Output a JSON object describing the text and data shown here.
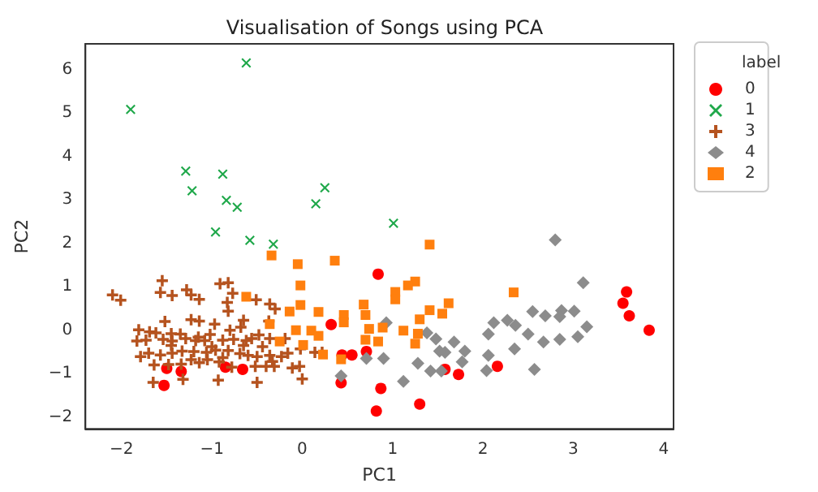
{
  "chart_data": {
    "type": "scatter",
    "title": "Visualisation of Songs using PCA",
    "xlabel": "PC1",
    "ylabel": "PC2",
    "legend_title": "label",
    "legend": "top right",
    "grid": false,
    "xlim": [
      -2.4,
      4.11
    ],
    "ylim": [
      -2.27,
      6.59
    ],
    "xticks": [
      -2,
      -1,
      0,
      1,
      2,
      3,
      4
    ],
    "yticks": [
      -2,
      -1,
      0,
      1,
      2,
      3,
      4,
      5,
      6
    ],
    "series": [
      {
        "name": "0",
        "color": "#ff0000",
        "marker": "circle",
        "x": [
          0.32,
          0.55,
          0.44,
          -0.66,
          -1.34,
          -1.53,
          -1.5,
          -0.85,
          0.43,
          0.84,
          0.71,
          0.87,
          0.82,
          1.3,
          1.58,
          1.73,
          2.16,
          3.59,
          3.55,
          3.62,
          3.84
        ],
        "values": [
          0.13,
          -0.57,
          -0.57,
          -0.9,
          -0.95,
          -1.27,
          -0.88,
          -0.85,
          -1.21,
          1.29,
          -0.49,
          -1.34,
          -1.86,
          -1.7,
          -0.9,
          -1.02,
          -0.83,
          0.88,
          0.62,
          0.33,
          0.0
        ]
      },
      {
        "name": "1",
        "color": "#1fa84a",
        "marker": "x",
        "x": [
          -0.62,
          -1.9,
          -1.29,
          -0.88,
          -1.22,
          -0.84,
          -0.72,
          0.25,
          0.15,
          -0.96,
          -0.58,
          -0.32,
          1.01
        ],
        "values": [
          6.15,
          5.08,
          3.66,
          3.59,
          3.21,
          2.99,
          2.83,
          3.28,
          2.91,
          2.26,
          2.07,
          1.98,
          2.46
        ]
      },
      {
        "name": "3",
        "color": "#b5531f",
        "marker": "cross",
        "x": [
          -2.1,
          -2.01,
          -1.55,
          -1.57,
          -1.44,
          -1.28,
          -1.23,
          -1.14,
          -0.91,
          -0.82,
          -0.77,
          -0.83,
          -0.82,
          -0.51,
          -0.36,
          -0.3,
          -1.23,
          -1.52,
          -1.14,
          -0.97,
          -1.81,
          -1.69,
          -1.62,
          -1.45,
          -1.35,
          -1.15,
          -1.02,
          -0.8,
          -0.65,
          -0.68,
          -0.56,
          -0.48,
          -0.37,
          -1.83,
          -1.73,
          -1.54,
          -1.44,
          -1.29,
          -1.18,
          -1.08,
          -0.88,
          -0.76,
          -0.62,
          -0.36,
          -0.19,
          -1.79,
          -1.7,
          -1.57,
          -1.44,
          -1.33,
          -1.2,
          -1.06,
          -0.96,
          -0.82,
          -0.69,
          -0.6,
          -0.44,
          -0.36,
          -0.16,
          -0.02,
          0.14,
          -1.64,
          -1.48,
          -1.34,
          -1.14,
          -0.92,
          -0.78,
          -0.52,
          -0.4,
          -0.31,
          -0.03,
          -1.65,
          -1.32,
          -0.93,
          -0.5,
          0.0,
          0.22,
          -1.45,
          -1.0,
          -0.65,
          -0.11,
          -1.23,
          -1.05,
          -0.88,
          -0.5,
          -0.33,
          -0.23
        ],
        "values": [
          0.81,
          0.69,
          1.14,
          0.87,
          0.8,
          0.93,
          0.81,
          0.71,
          1.07,
          1.09,
          0.85,
          0.64,
          0.44,
          0.7,
          0.6,
          0.49,
          0.24,
          0.2,
          0.21,
          0.14,
          0.01,
          -0.04,
          -0.06,
          -0.08,
          -0.09,
          -0.16,
          -0.1,
          0.0,
          0.23,
          0.07,
          -0.19,
          -0.11,
          0.21,
          -0.25,
          -0.23,
          -0.21,
          -0.25,
          -0.19,
          -0.24,
          -0.24,
          -0.23,
          -0.21,
          -0.24,
          -0.19,
          -0.19,
          -0.61,
          -0.53,
          -0.57,
          -0.53,
          -0.48,
          -0.49,
          -0.51,
          -0.46,
          -0.47,
          -0.54,
          -0.58,
          -0.38,
          -0.58,
          -0.53,
          -0.43,
          -0.51,
          -0.8,
          -0.79,
          -0.78,
          -0.75,
          -0.73,
          -0.85,
          -0.83,
          -0.83,
          -0.83,
          -0.83,
          -1.2,
          -1.13,
          -1.15,
          -1.2,
          -1.12,
          -0.51,
          -0.35,
          -0.38,
          -0.35,
          -0.87,
          -0.68,
          -0.68,
          -0.63,
          -0.61,
          -0.72,
          -0.61
        ]
      },
      {
        "name": "4",
        "color": "#8c8c8c",
        "marker": "diamond",
        "x": [
          2.8,
          3.11,
          0.93,
          2.55,
          2.69,
          2.87,
          3.01,
          2.85,
          3.15,
          3.05,
          2.85,
          2.67,
          2.5,
          2.27,
          2.36,
          2.12,
          2.06,
          2.35,
          2.06,
          2.04,
          2.57,
          1.38,
          1.48,
          1.68,
          1.58,
          1.8,
          1.77,
          1.52,
          1.28,
          1.42,
          1.54,
          1.12,
          0.9,
          0.71,
          0.43
        ],
        "values": [
          2.08,
          1.09,
          0.17,
          0.43,
          0.33,
          0.45,
          0.44,
          0.31,
          0.08,
          -0.15,
          -0.21,
          -0.27,
          -0.09,
          0.23,
          0.11,
          0.17,
          -0.09,
          -0.43,
          -0.58,
          -0.93,
          -0.9,
          -0.06,
          -0.2,
          -0.27,
          -0.51,
          -0.48,
          -0.73,
          -0.48,
          -0.76,
          -0.94,
          -0.94,
          -1.18,
          -0.65,
          -0.65,
          -1.05
        ]
      },
      {
        "name": "2",
        "color": "#ff7f0e",
        "marker": "square",
        "x": [
          -0.34,
          -0.05,
          0.36,
          -0.02,
          -0.62,
          -0.02,
          -0.14,
          0.18,
          0.46,
          0.46,
          -0.07,
          0.1,
          0.18,
          -0.36,
          -0.25,
          0.01,
          0.23,
          0.43,
          1.41,
          1.25,
          1.17,
          1.03,
          1.03,
          0.68,
          0.7,
          1.62,
          1.41,
          1.55,
          1.3,
          0.74,
          1.12,
          0.89,
          1.28,
          0.7,
          0.84,
          1.25,
          2.34
        ],
        "values": [
          1.72,
          1.52,
          1.6,
          1.03,
          0.77,
          0.58,
          0.43,
          0.42,
          0.35,
          0.18,
          0.0,
          -0.01,
          -0.13,
          0.14,
          -0.26,
          -0.34,
          -0.56,
          -0.67,
          1.97,
          1.12,
          1.03,
          0.88,
          0.71,
          0.59,
          0.35,
          0.62,
          0.46,
          0.38,
          0.25,
          0.03,
          -0.01,
          0.06,
          -0.08,
          -0.22,
          -0.26,
          -0.31,
          0.87
        ]
      }
    ]
  }
}
